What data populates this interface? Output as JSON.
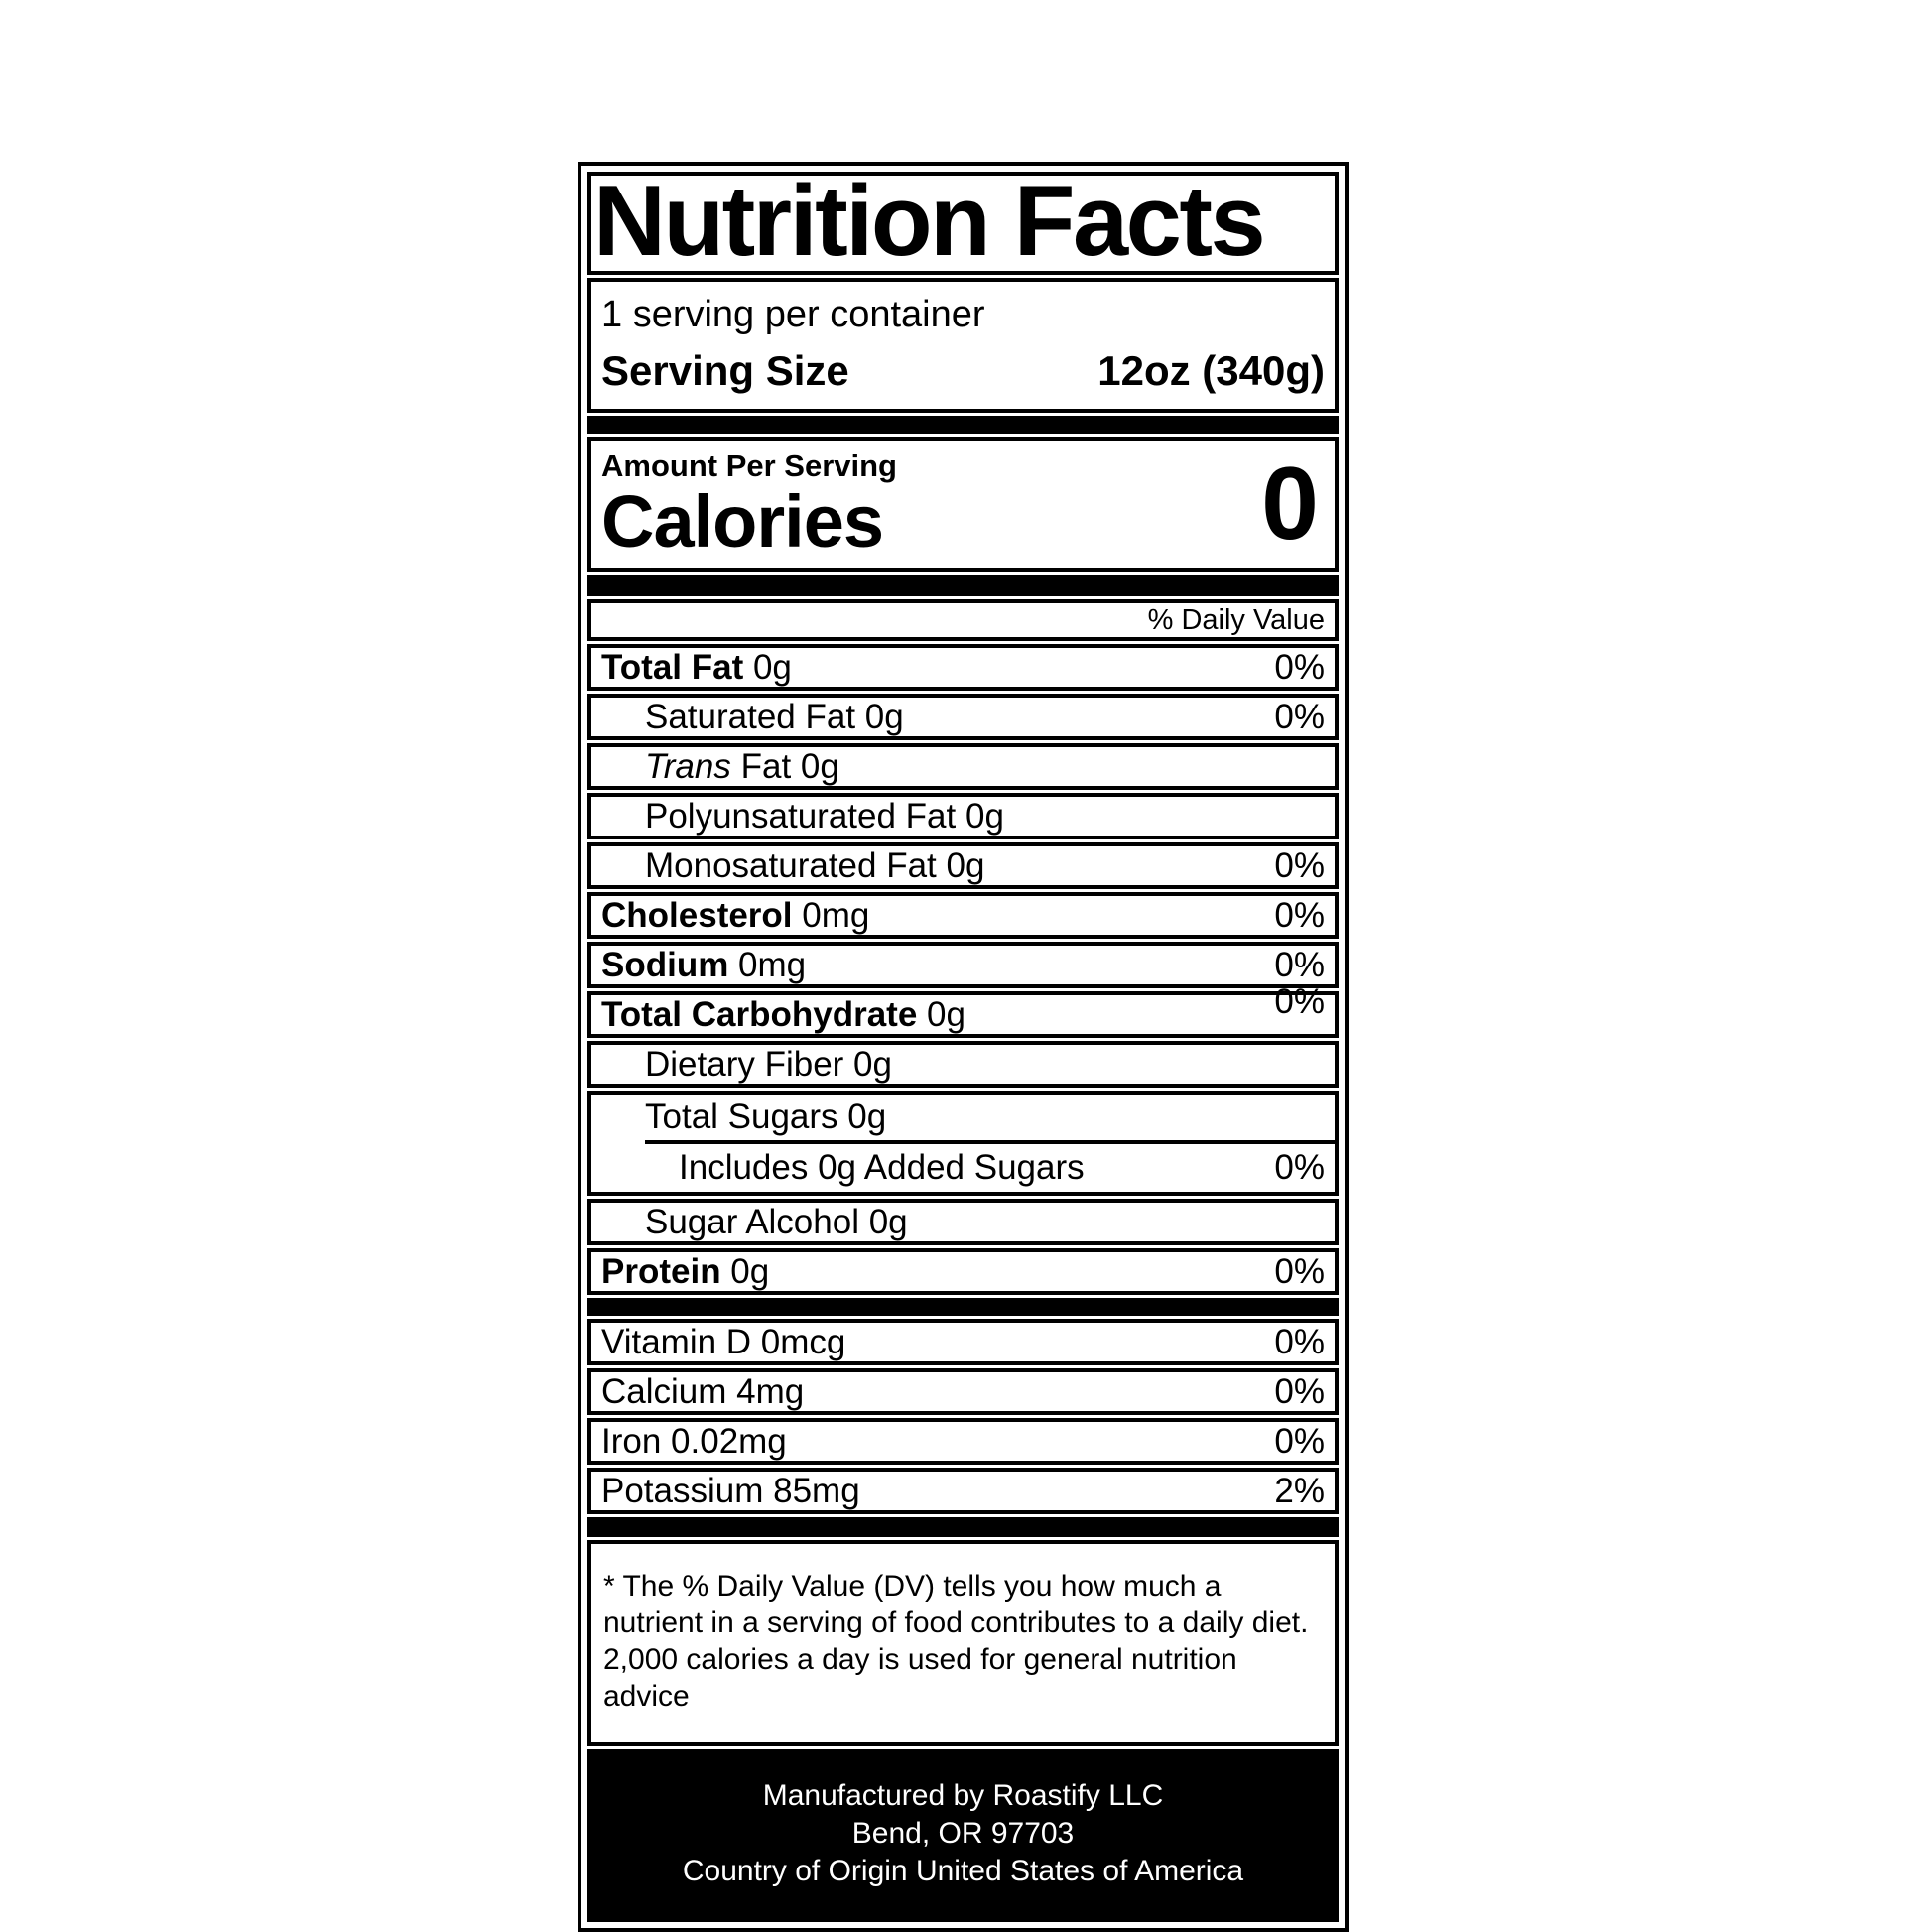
{
  "label": {
    "title": "Nutrition Facts",
    "serving": {
      "per_container": "1 serving per container",
      "size_label": "Serving Size",
      "size_value": "12oz (340g)"
    },
    "calories": {
      "heading": "Amount Per Serving",
      "label": "Calories",
      "value": "0"
    },
    "daily_value_header": "% Daily Value",
    "nutrient_rows": [
      {
        "name": "Total Fat",
        "amount": "0g",
        "pct": "0%",
        "bold": true,
        "level": 0
      },
      {
        "name": "Saturated Fat",
        "amount": "0g",
        "pct": "0%",
        "bold": false,
        "level": 1
      },
      {
        "italic_prefix": "Trans",
        "name": "Fat",
        "amount": "0g",
        "pct": "",
        "bold": false,
        "level": 1
      },
      {
        "name": "Polyunsaturated Fat",
        "amount": "0g",
        "pct": "",
        "bold": false,
        "level": 1
      },
      {
        "name": "Monosaturated Fat",
        "amount": "0g",
        "pct": "0%",
        "bold": false,
        "level": 1
      },
      {
        "name": "Cholesterol",
        "amount": "0mg",
        "pct": "0%",
        "bold": true,
        "level": 0
      },
      {
        "name": "Sodium",
        "amount": "0mg",
        "pct": "0%",
        "bold": true,
        "level": 0
      },
      {
        "name": "Total Carbohydrate",
        "amount": "0g",
        "pct": "0%",
        "bold": true,
        "level": 0,
        "pct_raised": true
      },
      {
        "name": "Dietary Fiber",
        "amount": "0g",
        "pct": "",
        "bold": false,
        "level": 1
      }
    ],
    "sugars": {
      "total_label": "Total Sugars 0g",
      "includes_label": "Includes 0g Added Sugars",
      "includes_pct": "0%"
    },
    "tail_rows": [
      {
        "name": "Sugar Alcohol",
        "amount": "0g",
        "pct": "",
        "bold": false,
        "level": 1
      },
      {
        "name": "Protein",
        "amount": "0g",
        "pct": "0%",
        "bold": true,
        "level": 0
      }
    ],
    "vitamin_rows": [
      {
        "name": "Vitamin D",
        "amount": "0mcg",
        "pct": "0%",
        "bold": false,
        "level": 0
      },
      {
        "name": "Calcium",
        "amount": "4mg",
        "pct": "0%",
        "bold": false,
        "level": 0
      },
      {
        "name": "Iron",
        "amount": "0.02mg",
        "pct": "0%",
        "bold": false,
        "level": 0
      },
      {
        "name": "Potassium",
        "amount": "85mg",
        "pct": "2%",
        "bold": false,
        "level": 0
      }
    ],
    "footnote": "* The % Daily Value (DV) tells you how much a nutrient in a serving of food contributes to a daily diet. 2,000 calories a day is used for general nutrition advice",
    "footer": {
      "lines": [
        "Manufactured by Roastify LLC",
        "Bend, OR 97703",
        "Country of Origin United States of America"
      ]
    },
    "colors": {
      "ink": "#000000",
      "paper": "#ffffff"
    }
  }
}
